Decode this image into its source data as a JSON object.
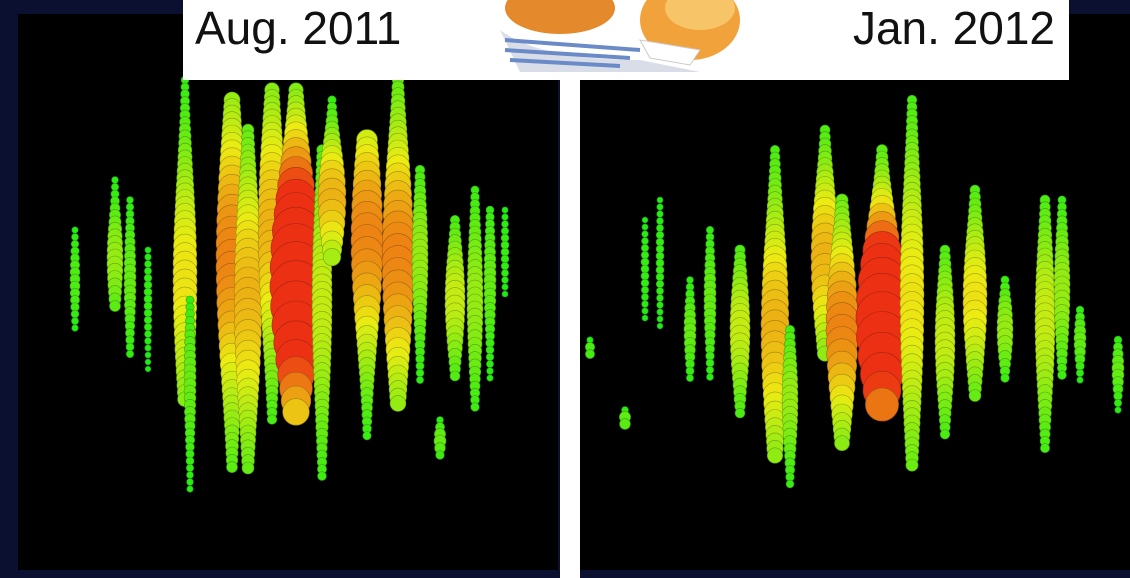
{
  "panels": [
    {
      "label": "Aug. 2011"
    },
    {
      "label": "Jan. 2012"
    }
  ]
}
